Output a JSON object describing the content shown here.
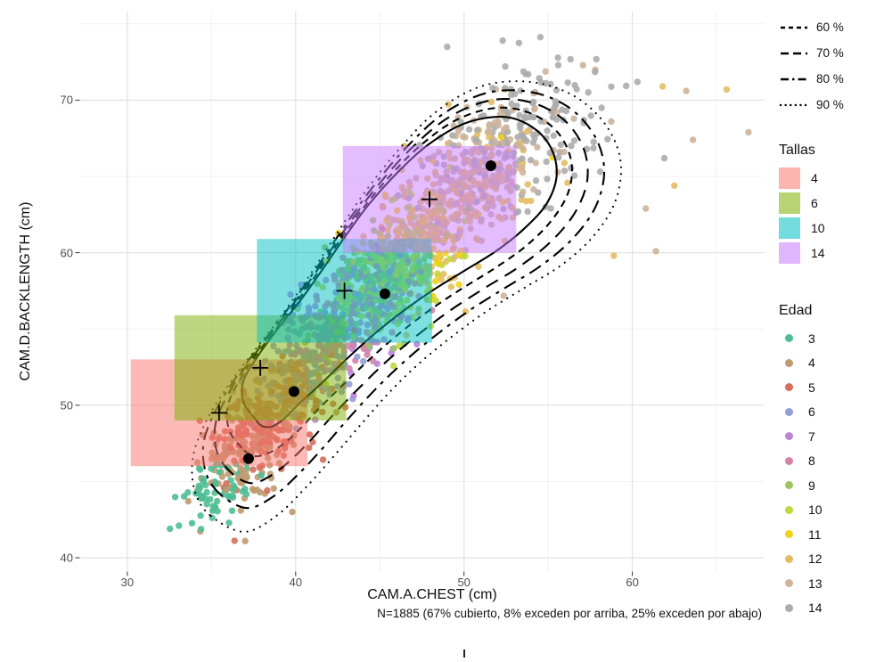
{
  "figure": {
    "caption": "N=1885 (67% cubierto, 8% exceden por arriba, 25% exceden por abajo)"
  },
  "chart_data": {
    "type": "scatter",
    "title": "",
    "xlabel": "CAM.A.CHEST (cm)",
    "ylabel": "CAM.D.BACKLENGTH (cm)",
    "xlim": [
      27.2,
      67.7
    ],
    "ylim": [
      39.2,
      75.7
    ],
    "x_major_ticks": [
      30,
      40,
      50,
      60
    ],
    "x_minor_ticks": [
      35,
      45,
      55,
      65
    ],
    "y_major_ticks": [
      40,
      50,
      60,
      70
    ],
    "y_minor_ticks": [
      45,
      55,
      65,
      75
    ],
    "grid": "major+minor",
    "legend_position": "right",
    "n_total": 1885,
    "contours": {
      "levels": [
        {
          "label": "",
          "percent": 50,
          "t": 0
        },
        {
          "label": "60 %",
          "percent": 60,
          "t": 0.3
        },
        {
          "label": "70 %",
          "percent": 70,
          "t": 0.55
        },
        {
          "label": "80 %",
          "percent": 80,
          "t": 0.78
        },
        {
          "label": "90 %",
          "percent": 90,
          "t": 1.0
        }
      ],
      "inner_path": [
        [
          37.6,
          49.1
        ],
        [
          36.9,
          50.2
        ],
        [
          36.9,
          51.6
        ],
        [
          37.8,
          53.3
        ],
        [
          39.0,
          55.1
        ],
        [
          40.3,
          56.9
        ],
        [
          41.6,
          58.9
        ],
        [
          42.9,
          61.0
        ],
        [
          44.3,
          63.1
        ],
        [
          46.0,
          65.2
        ],
        [
          47.9,
          67.1
        ],
        [
          50.1,
          68.5
        ],
        [
          52.4,
          68.9
        ],
        [
          54.1,
          68.2
        ],
        [
          55.2,
          66.8
        ],
        [
          55.5,
          65.0
        ],
        [
          54.9,
          63.2
        ],
        [
          53.6,
          61.6
        ],
        [
          51.9,
          60.1
        ],
        [
          50.0,
          58.8
        ],
        [
          48.1,
          57.5
        ],
        [
          46.3,
          56.1
        ],
        [
          44.6,
          54.6
        ],
        [
          43.0,
          53.0
        ],
        [
          41.5,
          51.4
        ],
        [
          40.2,
          50.1
        ],
        [
          39.3,
          49.1
        ],
        [
          38.6,
          48.6
        ],
        [
          38.1,
          48.6
        ],
        [
          37.8,
          48.8
        ]
      ],
      "outer_path": [
        [
          34.9,
          42.8
        ],
        [
          34.0,
          44.4
        ],
        [
          33.9,
          46.6
        ],
        [
          34.7,
          49.0
        ],
        [
          36.0,
          51.3
        ],
        [
          37.5,
          53.5
        ],
        [
          39.1,
          55.8
        ],
        [
          40.7,
          58.3
        ],
        [
          42.3,
          61.0
        ],
        [
          44.0,
          63.8
        ],
        [
          46.0,
          66.6
        ],
        [
          48.3,
          69.2
        ],
        [
          51.0,
          70.9
        ],
        [
          53.9,
          71.2
        ],
        [
          56.5,
          70.3
        ],
        [
          58.4,
          68.4
        ],
        [
          59.3,
          66.0
        ],
        [
          59.0,
          63.4
        ],
        [
          57.7,
          61.1
        ],
        [
          55.8,
          59.2
        ],
        [
          53.6,
          57.7
        ],
        [
          51.4,
          56.2
        ],
        [
          49.4,
          54.6
        ],
        [
          47.5,
          52.9
        ],
        [
          45.7,
          51.0
        ],
        [
          44.0,
          48.9
        ],
        [
          42.3,
          46.7
        ],
        [
          40.6,
          44.6
        ],
        [
          38.8,
          42.7
        ],
        [
          36.9,
          41.7
        ]
      ]
    },
    "tallas": {
      "title": "Tallas",
      "fill_alpha": 0.5,
      "rects": [
        {
          "label": "4",
          "color": "#F8766D",
          "x": [
            30.2,
            40.7
          ],
          "y": [
            46.0,
            53.0
          ]
        },
        {
          "label": "6",
          "color": "#7CAE00",
          "x": [
            32.8,
            43.0
          ],
          "y": [
            49.0,
            55.9
          ]
        },
        {
          "label": "10",
          "color": "#00BFC4",
          "x": [
            37.7,
            48.1
          ],
          "y": [
            54.1,
            60.9
          ]
        },
        {
          "label": "14",
          "color": "#C77CFF",
          "x": [
            42.8,
            53.1
          ],
          "y": [
            60.0,
            67.0
          ]
        }
      ]
    },
    "edad": {
      "title": "Edad",
      "clusters": [
        {
          "label": "3",
          "color": "#4FBE94",
          "n": 70,
          "cx": 35.4,
          "cy": 44.6,
          "sdx": 1.1,
          "sdy": 1.3,
          "r": 0.5
        },
        {
          "label": "4",
          "color": "#BE9A6F",
          "n": 150,
          "cx": 37.3,
          "cy": 47.5,
          "sdx": 1.6,
          "sdy": 2.0,
          "r": 0.55
        },
        {
          "label": "5",
          "color": "#D56F5B",
          "n": 200,
          "cx": 38.6,
          "cy": 48.9,
          "sdx": 1.5,
          "sdy": 1.8,
          "r": 0.55
        },
        {
          "label": "6",
          "color": "#909FD4",
          "n": 150,
          "cx": 40.6,
          "cy": 52.2,
          "sdx": 1.7,
          "sdy": 2.0,
          "r": 0.55
        },
        {
          "label": "7",
          "color": "#B985D6",
          "n": 160,
          "cx": 42.6,
          "cy": 55.0,
          "sdx": 1.9,
          "sdy": 2.2,
          "r": 0.55
        },
        {
          "label": "8",
          "color": "#D583A9",
          "n": 150,
          "cx": 43.8,
          "cy": 56.3,
          "sdx": 2.0,
          "sdy": 2.3,
          "r": 0.55
        },
        {
          "label": "9",
          "color": "#9FC45F",
          "n": 160,
          "cx": 44.8,
          "cy": 57.8,
          "sdx": 1.9,
          "sdy": 2.2,
          "r": 0.55
        },
        {
          "label": "10",
          "color": "#C2D83C",
          "n": 160,
          "cx": 45.9,
          "cy": 59.0,
          "sdx": 2.0,
          "sdy": 2.3,
          "r": 0.55
        },
        {
          "label": "11",
          "color": "#F1D21C",
          "n": 150,
          "cx": 47.2,
          "cy": 60.5,
          "sdx": 2.1,
          "sdy": 2.4,
          "r": 0.55
        },
        {
          "label": "12",
          "color": "#E4BC63",
          "n": 190,
          "cx": 49.3,
          "cy": 63.0,
          "sdx": 2.3,
          "sdy": 2.6,
          "r": 0.55
        },
        {
          "label": "13",
          "color": "#CDB49B",
          "n": 170,
          "cx": 51.0,
          "cy": 65.3,
          "sdx": 2.4,
          "sdy": 2.7,
          "r": 0.55
        },
        {
          "label": "14",
          "color": "#ACACAC",
          "n": 175,
          "cx": 52.8,
          "cy": 67.2,
          "sdx": 2.7,
          "sdy": 2.6,
          "r": 0.5
        }
      ],
      "extra_points": [
        [
          60.3,
          71.2,
          "14"
        ],
        [
          61.8,
          70.9,
          "12"
        ],
        [
          63.2,
          70.6,
          "13"
        ],
        [
          65.6,
          70.7,
          "12"
        ],
        [
          66.9,
          67.9,
          "13"
        ],
        [
          63.6,
          67.4,
          "13"
        ],
        [
          61.9,
          66.2,
          "14"
        ],
        [
          62.5,
          64.4,
          "12"
        ],
        [
          60.8,
          62.9,
          "13"
        ],
        [
          61.4,
          60.1,
          "13"
        ],
        [
          58.9,
          59.8,
          "12"
        ],
        [
          52.3,
          73.9,
          "14"
        ],
        [
          55.6,
          72.3,
          "14"
        ],
        [
          57.8,
          72.0,
          "13"
        ],
        [
          49.0,
          73.5,
          "14"
        ],
        [
          37.0,
          41.1,
          "4"
        ],
        [
          39.8,
          43.0,
          "4"
        ]
      ]
    },
    "centroids": [
      [
        37.2,
        46.5
      ],
      [
        39.9,
        50.9
      ],
      [
        45.3,
        57.3
      ],
      [
        51.6,
        65.7
      ]
    ],
    "cross_markers": [
      [
        35.45,
        49.5
      ],
      [
        37.9,
        52.45
      ],
      [
        42.9,
        57.5
      ],
      [
        47.95,
        63.5
      ]
    ]
  },
  "style_colors": {
    "grid_major": "#E2E2E2",
    "grid_minor": "#F1F1F1",
    "contour": "#000000",
    "tick": "#333333",
    "point_opacity": 0.9
  }
}
